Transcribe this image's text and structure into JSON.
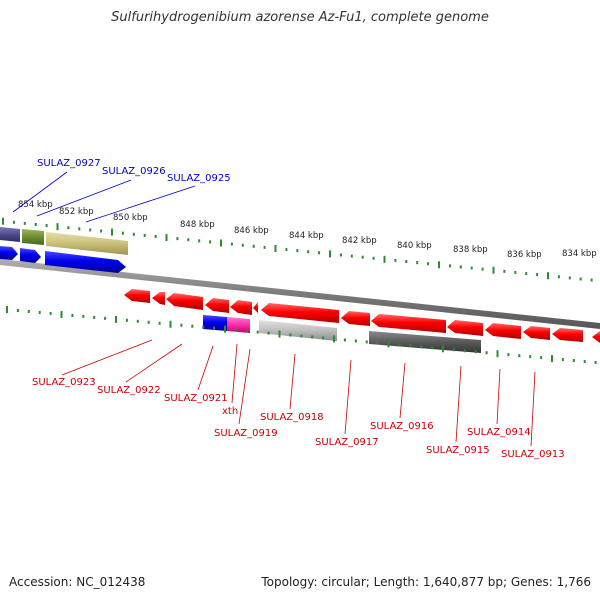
{
  "title": "Sulfurihydrogenibium azorense Az-Fu1, complete genome",
  "footer": {
    "accession": "Accession: NC_012438",
    "topology": "Topology: circular; Length: 1,640,877 bp; Genes: 1,766"
  },
  "scale_labels": [
    "854 kbp",
    "852 kbp",
    "850 kbp",
    "848 kbp",
    "846 kbp",
    "844 kbp",
    "842 kbp",
    "840 kbp",
    "838 kbp",
    "836 kbp",
    "834 kbp"
  ],
  "forward_labels": [
    "SULAZ_0927",
    "SULAZ_0926",
    "SULAZ_0925"
  ],
  "reverse_labels": [
    "SULAZ_0923",
    "SULAZ_0922",
    "SULAZ_0921",
    "xth",
    "SULAZ_0919",
    "SULAZ_0918",
    "SULAZ_0917",
    "SULAZ_0916",
    "SULAZ_0915",
    "SULAZ_0914",
    "SULAZ_0913"
  ],
  "colors": {
    "forward_label": "#0000cc",
    "reverse_label": "#cc0000",
    "tick": "#2e8b2e",
    "backbone": "#888888",
    "forward_gene": "#0000ee",
    "reverse_gene": "#ee0000"
  }
}
